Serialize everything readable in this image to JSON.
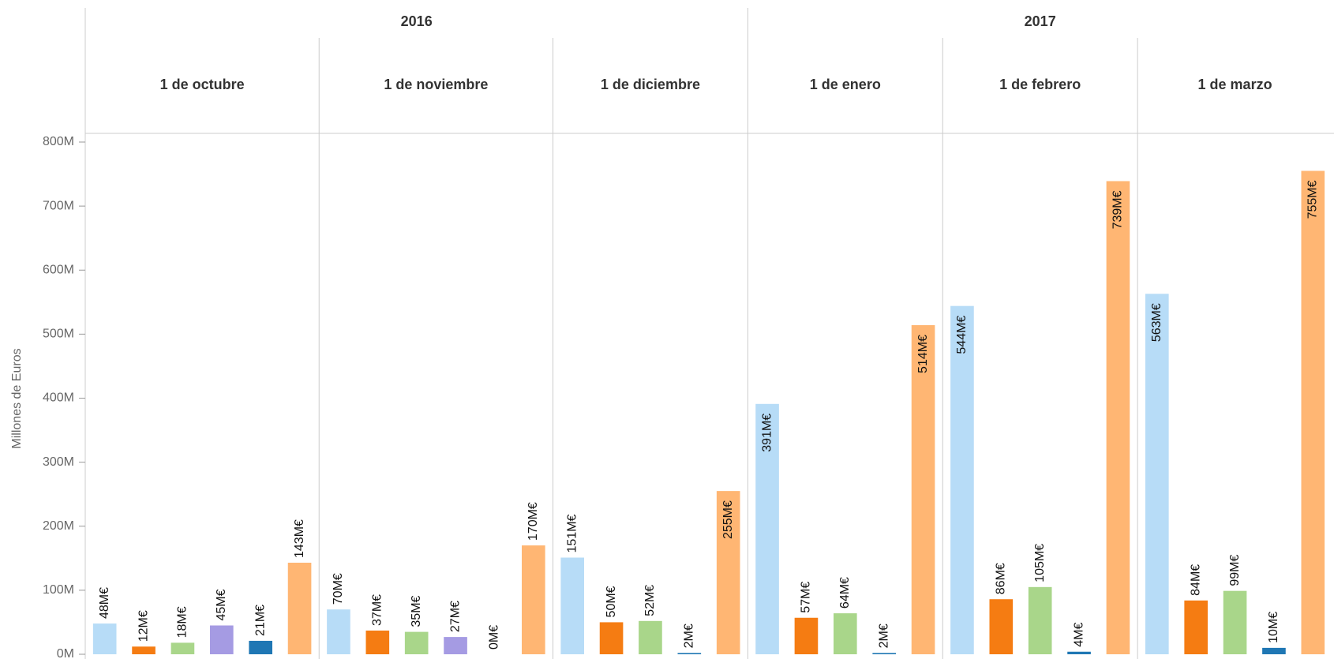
{
  "chart_data": {
    "type": "bar",
    "y_label": "Millones de Euros",
    "x_groups": [
      {
        "label": "2016",
        "count": 3
      },
      {
        "label": "2017",
        "count": 3
      }
    ],
    "categories": [
      "1 de octubre",
      "1 de noviembre",
      "1 de diciembre",
      "1 de enero",
      "1 de febrero",
      "1 de marzo"
    ],
    "series": [
      {
        "color": "#b7dcf7",
        "values": [
          48,
          70,
          151,
          391,
          544,
          563
        ],
        "value_labels": [
          "48M€",
          "70M€",
          "151M€",
          "391M€",
          "544M€",
          "563M€"
        ]
      },
      {
        "color": "#f57c12",
        "values": [
          12,
          37,
          50,
          57,
          86,
          84
        ],
        "value_labels": [
          "12M€",
          "37M€",
          "50M€",
          "57M€",
          "86M€",
          "84M€"
        ]
      },
      {
        "color": "#a9d68a",
        "values": [
          18,
          35,
          52,
          64,
          105,
          99
        ],
        "value_labels": [
          "18M€",
          "35M€",
          "52M€",
          "64M€",
          "105M€",
          "99M€"
        ]
      },
      {
        "color": "#a59be3",
        "values": [
          45,
          27,
          null,
          null,
          null,
          null
        ],
        "value_labels": [
          "45M€",
          "27M€",
          null,
          null,
          null,
          null
        ]
      },
      {
        "color": "#1f77b4",
        "values": [
          21,
          0,
          2,
          2,
          4,
          10
        ],
        "value_labels": [
          "21M€",
          "0M€",
          "2M€",
          "2M€",
          "4M€",
          "10M€"
        ]
      },
      {
        "color": "#ffb673",
        "values": [
          143,
          170,
          255,
          514,
          739,
          755
        ],
        "value_labels": [
          "143M€",
          "170M€",
          "255M€",
          "514M€",
          "739M€",
          "755M€"
        ]
      }
    ],
    "ylim": [
      0,
      800
    ],
    "yticks": [
      {
        "value": 0,
        "label": "0M"
      },
      {
        "value": 100,
        "label": "100M"
      },
      {
        "value": 200,
        "label": "200M"
      },
      {
        "value": 300,
        "label": "300M"
      },
      {
        "value": 400,
        "label": "400M"
      },
      {
        "value": 500,
        "label": "500M"
      },
      {
        "value": 600,
        "label": "600M"
      },
      {
        "value": 700,
        "label": "700M"
      },
      {
        "value": 800,
        "label": "800M"
      }
    ],
    "grid": false
  }
}
